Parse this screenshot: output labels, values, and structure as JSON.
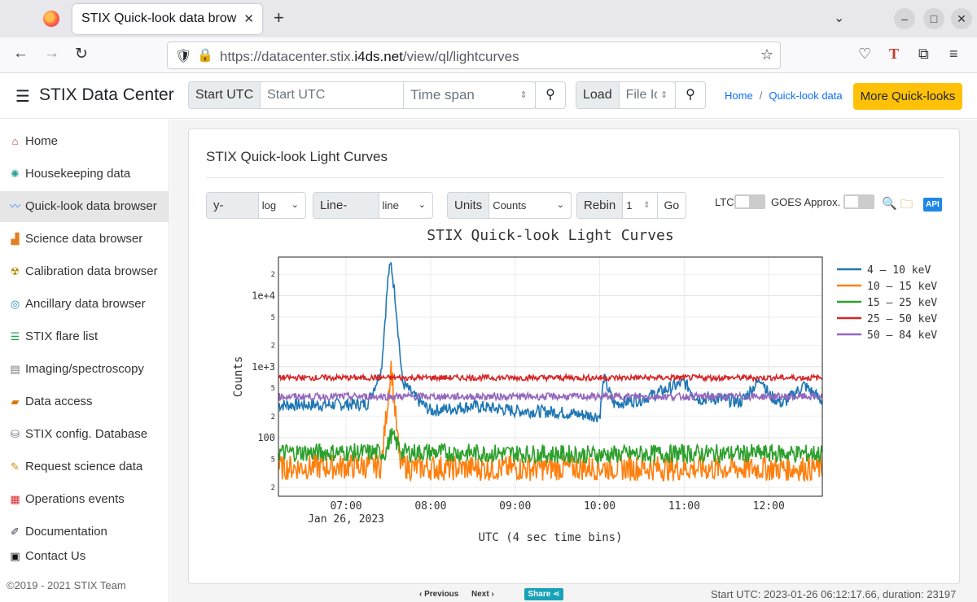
{
  "browser": {
    "tab_title": "STIX Quick-look data brow",
    "url_prefix": "https://datacenter.stix.",
    "url_domain": "i4ds.net",
    "url_path": "/view/ql/lightcurves"
  },
  "header": {
    "brand": "STIX Data Center",
    "start_label": "Start UTC",
    "start_placeholder": "Start UTC",
    "span_placeholder": "Time span (min)",
    "load_label": "Load",
    "file_placeholder": "File Id",
    "breadcrumb": [
      "Home",
      "Quick-look data"
    ],
    "more_button": "More Quick-looks"
  },
  "sidebar": {
    "items": [
      {
        "label": "Home",
        "icon": "home-icon",
        "glyph": "⌂",
        "color": "#c0392b"
      },
      {
        "label": "Housekeeping data",
        "icon": "chip-icon",
        "glyph": "✺",
        "color": "#2aa198"
      },
      {
        "label": "Quick-look data browser",
        "icon": "chart-icon",
        "glyph": "〰",
        "color": "#3b82f6"
      },
      {
        "label": "Science data browser",
        "icon": "bar-chart-icon",
        "glyph": "▟",
        "color": "#e67e22"
      },
      {
        "label": "Calibration data browser",
        "icon": "radiation-icon",
        "glyph": "☢",
        "color": "#b58900"
      },
      {
        "label": "Ancillary data browser",
        "icon": "orbit-icon",
        "glyph": "◎",
        "color": "#268bd2"
      },
      {
        "label": "STIX flare list",
        "icon": "list-icon",
        "glyph": "☰",
        "color": "#16a34a"
      },
      {
        "label": "Imaging/spectroscopy",
        "icon": "document-icon",
        "glyph": "▤",
        "color": "#777777"
      },
      {
        "label": "Data access",
        "icon": "folder-icon",
        "glyph": "▰",
        "color": "#d97706"
      },
      {
        "label": "STIX config. Database",
        "icon": "database-icon",
        "glyph": "⛁",
        "color": "#6b7280"
      },
      {
        "label": "Request science data",
        "icon": "request-icon",
        "glyph": "✎",
        "color": "#ca8a04"
      },
      {
        "label": "Operations events",
        "icon": "calendar-icon",
        "glyph": "▦",
        "color": "#dc2626"
      },
      {
        "label": "Documentation",
        "icon": "doc-edit-icon",
        "glyph": "✐",
        "color": "#374151"
      },
      {
        "label": "Contact Us",
        "icon": "contact-card-icon",
        "glyph": "▣",
        "color": "#111111"
      }
    ],
    "active_index": 2,
    "footer": "©2019 - 2021 STIX Team"
  },
  "panel": {
    "title": "STIX Quick-look Light Curves",
    "yscale_label": "y-scale",
    "yscale_value": "log",
    "linestyle_label": "Line-style",
    "linestyle_value": "line",
    "units_label": "Units",
    "units_value": "Counts",
    "rebin_label": "Rebin",
    "rebin_value": "1",
    "go_label": "Go",
    "ltc_label": "LTC",
    "goes_label": "GOES Approx.",
    "api_label": "API"
  },
  "chart_data": {
    "type": "line",
    "title": "STIX Quick-look Light Curves",
    "xlabel": "UTC (4 sec time bins)",
    "ylabel": "Counts",
    "x_ticks": [
      "07:00",
      "08:00",
      "09:00",
      "10:00",
      "11:00",
      "12:00"
    ],
    "x_date_label": "Jan 26, 2023",
    "x_range": [
      "06:12",
      "12:38"
    ],
    "y_scale": "log",
    "y_range": [
      15,
      35000
    ],
    "y_major_ticks": [
      "100",
      "1e+3",
      "1e+4"
    ],
    "y_minor_ticks": [
      "2",
      "5",
      "2",
      "5",
      "2",
      "5",
      "2"
    ],
    "legend_position": "right",
    "series": [
      {
        "name": "4 – 10 keV",
        "color": "#1f77b4",
        "x": [
          "06:12",
          "06:45",
          "07:15",
          "07:25",
          "07:30",
          "07:32",
          "07:35",
          "07:40",
          "07:50",
          "08:00",
          "08:30",
          "09:00",
          "09:30",
          "10:00",
          "10:03",
          "10:10",
          "10:30",
          "11:00",
          "11:10",
          "11:20",
          "11:40",
          "11:55",
          "12:00",
          "12:10",
          "12:25",
          "12:38"
        ],
        "values": [
          290,
          290,
          300,
          900,
          20000,
          28000,
          9000,
          600,
          350,
          240,
          280,
          240,
          230,
          200,
          700,
          300,
          350,
          600,
          350,
          360,
          320,
          700,
          400,
          300,
          550,
          330
        ]
      },
      {
        "name": "10 – 15 keV",
        "color": "#ff7f0e",
        "x": [
          "06:12",
          "07:25",
          "07:32",
          "07:38",
          "07:45",
          "09:00",
          "10:00",
          "11:00",
          "12:00",
          "12:38"
        ],
        "values": [
          38,
          40,
          1050,
          45,
          38,
          37,
          38,
          37,
          37,
          37
        ]
      },
      {
        "name": "15 – 25 keV",
        "color": "#2ca02c",
        "x": [
          "06:12",
          "07:28",
          "07:32",
          "07:40",
          "09:00",
          "10:00",
          "11:00",
          "12:00",
          "12:38"
        ],
        "values": [
          62,
          62,
          110,
          63,
          60,
          58,
          60,
          60,
          60
        ]
      },
      {
        "name": "25 – 50 keV",
        "color": "#d62728",
        "x": [
          "06:12",
          "12:38"
        ],
        "values": [
          700,
          700
        ]
      },
      {
        "name": "50 – 84 keV",
        "color": "#9467bd",
        "x": [
          "06:12",
          "12:38"
        ],
        "values": [
          380,
          380
        ]
      }
    ]
  },
  "footer": {
    "previous": "Previous",
    "next": "Next",
    "share": "Share",
    "start_info": "Start UTC: 2023-01-26 06:12:17.66, duration: 23197"
  }
}
